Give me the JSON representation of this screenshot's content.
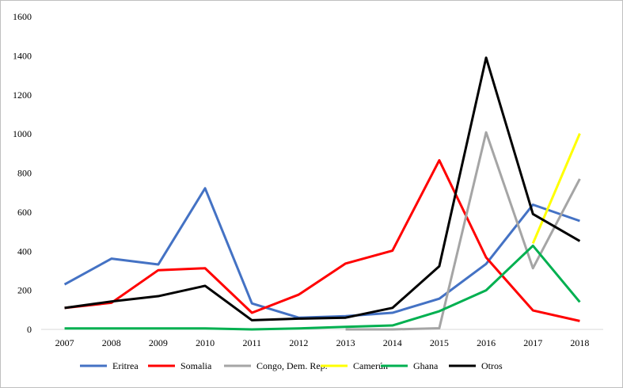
{
  "chart_data": {
    "type": "line",
    "title": "",
    "xlabel": "",
    "ylabel": "",
    "x": [
      "2007",
      "2008",
      "2009",
      "2010",
      "2011",
      "2012",
      "2013",
      "2014",
      "2015",
      "2016",
      "2017",
      "2018"
    ],
    "ylim": [
      0,
      1600
    ],
    "yticks": [
      0,
      200,
      400,
      600,
      800,
      1000,
      1200,
      1400,
      1600
    ],
    "ytick_labels": [
      "0",
      "200",
      "400",
      "600",
      "800",
      "1000",
      "1200",
      "1400",
      "1600"
    ],
    "grid": false,
    "legend_position": "bottom",
    "series": [
      {
        "name": "Eritrea",
        "color": "#4472c4",
        "values": [
          230,
          362,
          332,
          722,
          133,
          60,
          68,
          85,
          157,
          335,
          638,
          555
        ]
      },
      {
        "name": "Somalia",
        "color": "#ff0000",
        "values": [
          110,
          136,
          303,
          313,
          85,
          178,
          337,
          403,
          865,
          368,
          97,
          43
        ]
      },
      {
        "name": "Congo, Dem. Rep.",
        "color": "#a5a5a5",
        "values": [
          null,
          null,
          null,
          null,
          null,
          null,
          0,
          0,
          6,
          1008,
          313,
          770
        ]
      },
      {
        "name": "Camerún",
        "color": "#ffff00",
        "values": [
          null,
          null,
          null,
          null,
          null,
          null,
          null,
          null,
          null,
          null,
          440,
          1002
        ]
      },
      {
        "name": "Ghana",
        "color": "#00b050",
        "values": [
          5,
          5,
          5,
          5,
          0,
          5,
          13,
          20,
          93,
          200,
          428,
          140
        ]
      },
      {
        "name": "Otros",
        "color": "#000000",
        "values": [
          110,
          143,
          170,
          223,
          47,
          55,
          60,
          110,
          323,
          1390,
          590,
          452
        ]
      }
    ]
  }
}
